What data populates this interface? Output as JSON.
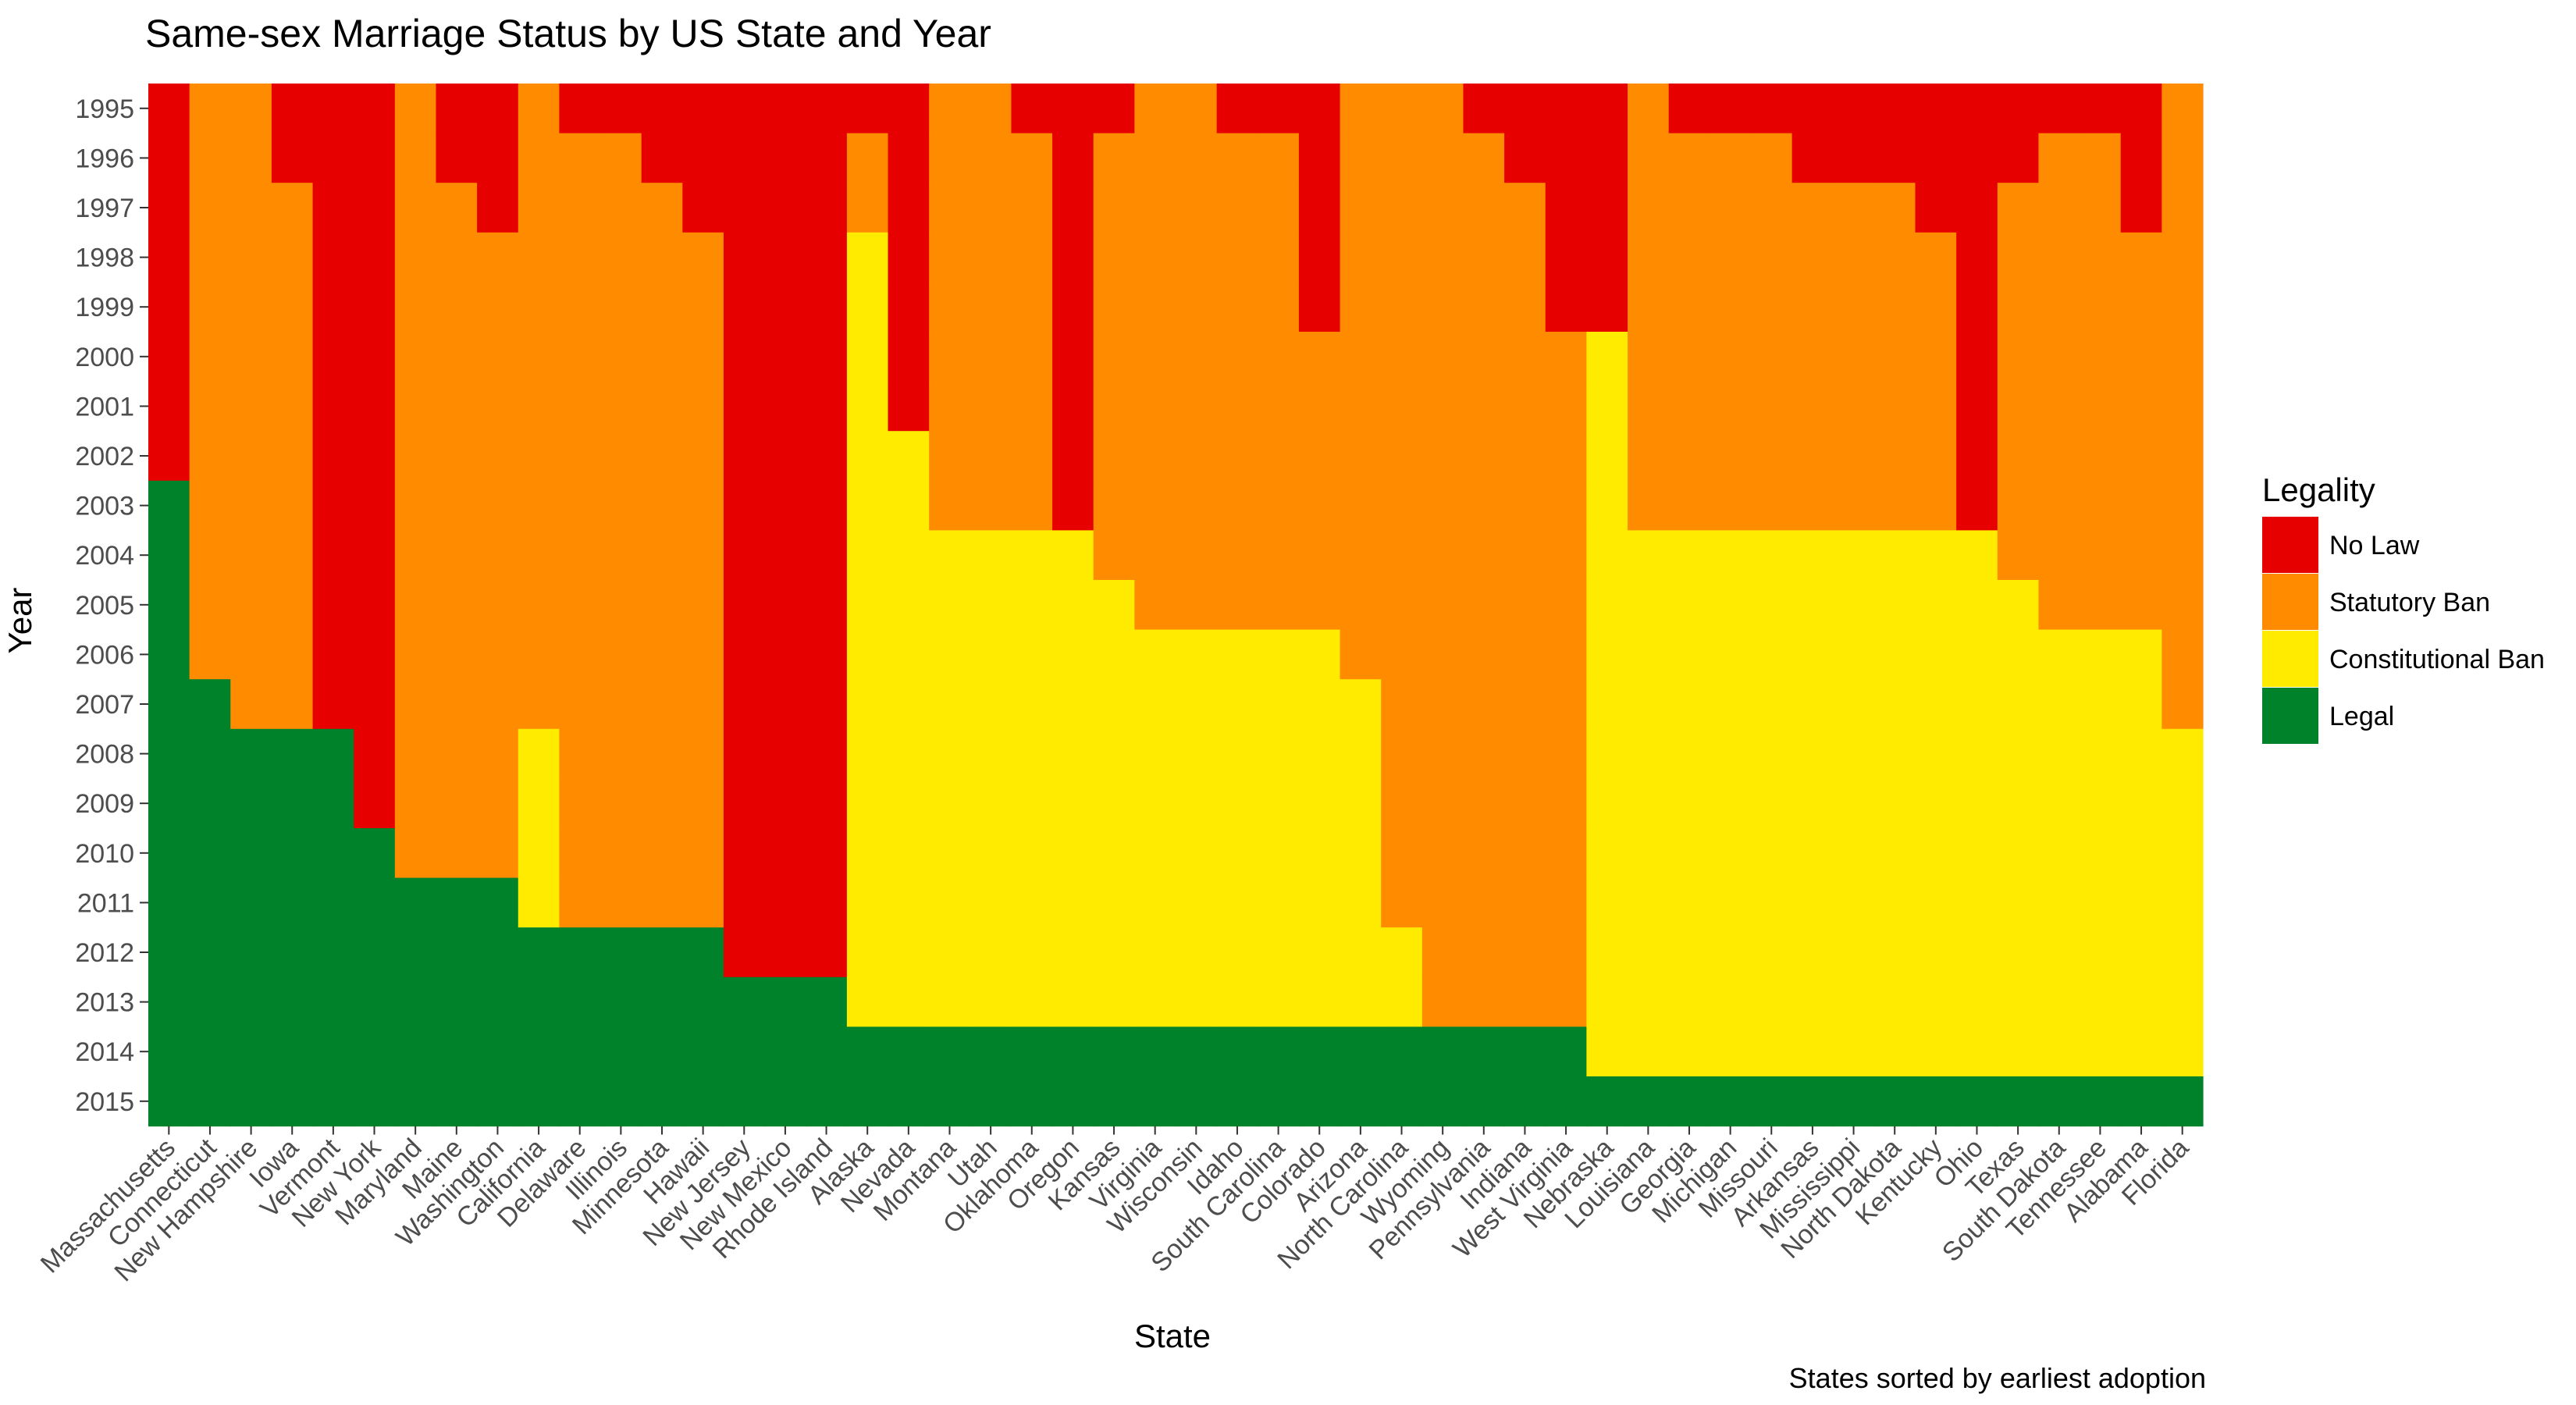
{
  "chart_data": {
    "type": "heatmap",
    "title": "Same-sex Marriage Status by US State and Year",
    "xlabel": "State",
    "ylabel": "Year",
    "caption": "States sorted by earliest adoption",
    "years": [
      1995,
      1996,
      1997,
      1998,
      1999,
      2000,
      2001,
      2002,
      2003,
      2004,
      2005,
      2006,
      2007,
      2008,
      2009,
      2010,
      2011,
      2012,
      2013,
      2014,
      2015
    ],
    "legend": {
      "title": "Legality",
      "position": "right",
      "items": [
        {
          "code": "N",
          "label": "No Law",
          "color": "#E60000"
        },
        {
          "code": "S",
          "label": "Statutory Ban",
          "color": "#FF8C00"
        },
        {
          "code": "C",
          "label": "Constitutional Ban",
          "color": "#FFEB00"
        },
        {
          "code": "L",
          "label": "Legal",
          "color": "#00822B"
        }
      ]
    },
    "states": [
      {
        "name": "Massachusetts",
        "status": "NNNNNNNNLLLLLLLLLLLLL"
      },
      {
        "name": "Connecticut",
        "status": "SSSSSSSSSSSSLLLLLLLLL"
      },
      {
        "name": "New Hampshire",
        "status": "SSSSSSSSSSSSSLLLLLLLL"
      },
      {
        "name": "Iowa",
        "status": "NNSSSSSSSSSSSLLLLLLLL"
      },
      {
        "name": "Vermont",
        "status": "NNNNNNNNNNNNNLLLLLLLL"
      },
      {
        "name": "New York",
        "status": "NNNNNNNNNNNNNNNLLLLLL"
      },
      {
        "name": "Maryland",
        "status": "SSSSSSSSSSSSSSSSLLLLL"
      },
      {
        "name": "Maine",
        "status": "NNSSSSSSSSSSSSSSLLLLL"
      },
      {
        "name": "Washington",
        "status": "NNNSSSSSSSSSSSSSLLLLL"
      },
      {
        "name": "California",
        "status": "SSSSSSSSSSSSSCCCCLLLL"
      },
      {
        "name": "Delaware",
        "status": "NSSSSSSSSSSSSSSSSLLLL"
      },
      {
        "name": "Illinois",
        "status": "NSSSSSSSSSSSSSSSSLLLL"
      },
      {
        "name": "Minnesota",
        "status": "NNSSSSSSSSSSSSSSSLLLL"
      },
      {
        "name": "Hawaii",
        "status": "NNNSSSSSSSSSSSSSSLLLL"
      },
      {
        "name": "New Jersey",
        "status": "NNNNNNNNNNNNNNNNNNLLL"
      },
      {
        "name": "New Mexico",
        "status": "NNNNNNNNNNNNNNNNNNLLL"
      },
      {
        "name": "Rhode Island",
        "status": "NNNNNNNNNNNNNNNNNNLLL"
      },
      {
        "name": "Alaska",
        "status": "NSSCCCCCCCCCCCCCCCCLL"
      },
      {
        "name": "Nevada",
        "status": "NNNNNNNCCCCCCCCCCCCLL"
      },
      {
        "name": "Montana",
        "status": "SSSSSSSSSCCCCCCCCCCLL"
      },
      {
        "name": "Utah",
        "status": "SSSSSSSSSCCCCCCCCCCLL"
      },
      {
        "name": "Oklahoma",
        "status": "NSSSSSSSSCCCCCCCCCCLL"
      },
      {
        "name": "Oregon",
        "status": "NNNNNNNNNCCCCCCCCCCLL"
      },
      {
        "name": "Kansas",
        "status": "NSSSSSSSSSCCCCCCCCCLL"
      },
      {
        "name": "Virginia",
        "status": "SSSSSSSSSSSCCCCCCCCLL"
      },
      {
        "name": "Wisconsin",
        "status": "SSSSSSSSSSSCCCCCCCCLL"
      },
      {
        "name": "Idaho",
        "status": "NSSSSSSSSSSCCCCCCCCLL"
      },
      {
        "name": "South Carolina",
        "status": "NSSSSSSSSSSCCCCCCCCLL"
      },
      {
        "name": "Colorado",
        "status": "NNNNNSSSSSSCCCCCCCCLL"
      },
      {
        "name": "Arizona",
        "status": "SSSSSSSSSSSSCCCCCCCLL"
      },
      {
        "name": "North Carolina",
        "status": "SSSSSSSSSSSSSSSSSCCLL"
      },
      {
        "name": "Wyoming",
        "status": "SSSSSSSSSSSSSSSSSSSLL"
      },
      {
        "name": "Pennsylvania",
        "status": "NSSSSSSSSSSSSSSSSSSLL"
      },
      {
        "name": "Indiana",
        "status": "NNSSSSSSSSSSSSSSSSSLL"
      },
      {
        "name": "West Virginia",
        "status": "NNNNNSSSSSSSSSSSSSSLL"
      },
      {
        "name": "Nebraska",
        "status": "NNNNNCCCCCCCCCCCCCCCL"
      },
      {
        "name": "Louisiana",
        "status": "SSSSSSSSSCCCCCCCCCCCL"
      },
      {
        "name": "Georgia",
        "status": "NSSSSSSSSCCCCCCCCCCCL"
      },
      {
        "name": "Michigan",
        "status": "NSSSSSSSSCCCCCCCCCCCL"
      },
      {
        "name": "Missouri",
        "status": "NSSSSSSSSCCCCCCCCCCCL"
      },
      {
        "name": "Arkansas",
        "status": "NNSSSSSSSCCCCCCCCCCCL"
      },
      {
        "name": "Mississippi",
        "status": "NNSSSSSSSCCCCCCCCCCCL"
      },
      {
        "name": "North Dakota",
        "status": "NNSSSSSSSCCCCCCCCCCCL"
      },
      {
        "name": "Kentucky",
        "status": "NNNSSSSSSCCCCCCCCCCCL"
      },
      {
        "name": "Ohio",
        "status": "NNNNNNNNNCCCCCCCCCCCL"
      },
      {
        "name": "Texas",
        "status": "NNSSSSSSSSCCCCCCCCCCL"
      },
      {
        "name": "South Dakota",
        "status": "NSSSSSSSSSSCCCCCCCCCL"
      },
      {
        "name": "Tennessee",
        "status": "NSSSSSSSSSSCCCCCCCCCL"
      },
      {
        "name": "Alabama",
        "status": "NNNSSSSSSSSCCCCCCCCCL"
      },
      {
        "name": "Florida",
        "status": "SSSSSSSSSSSSSCCCCCCCL"
      }
    ]
  }
}
